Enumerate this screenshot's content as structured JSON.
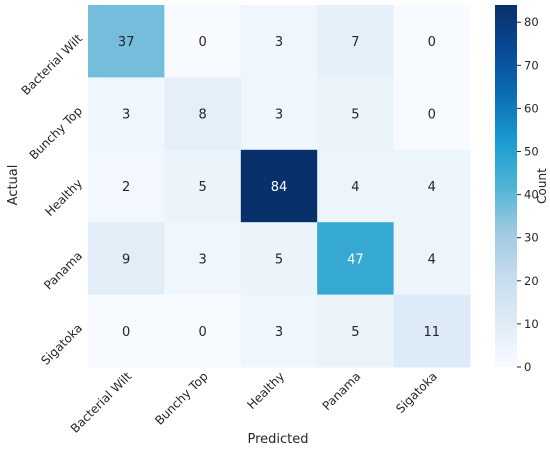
{
  "chart_data": {
    "type": "heatmap",
    "title": "",
    "xlabel": "Predicted",
    "ylabel": "Actual",
    "x_categories": [
      "Bacterial Wilt",
      "Bunchy Top",
      "Healthy",
      "Panama",
      "Sigatoka"
    ],
    "y_categories": [
      "Bacterial Wilt",
      "Bunchy Top",
      "Healthy",
      "Panama",
      "Sigatoka"
    ],
    "values": [
      [
        37,
        0,
        3,
        7,
        0
      ],
      [
        3,
        8,
        3,
        5,
        0
      ],
      [
        2,
        5,
        84,
        4,
        4
      ],
      [
        9,
        3,
        5,
        47,
        4
      ],
      [
        0,
        0,
        3,
        5,
        11
      ]
    ],
    "colorbar": {
      "label": "Count",
      "range": [
        0,
        84
      ],
      "ticks": [
        0,
        10,
        20,
        30,
        40,
        50,
        60,
        70,
        80
      ],
      "colormap": "Blues"
    }
  }
}
